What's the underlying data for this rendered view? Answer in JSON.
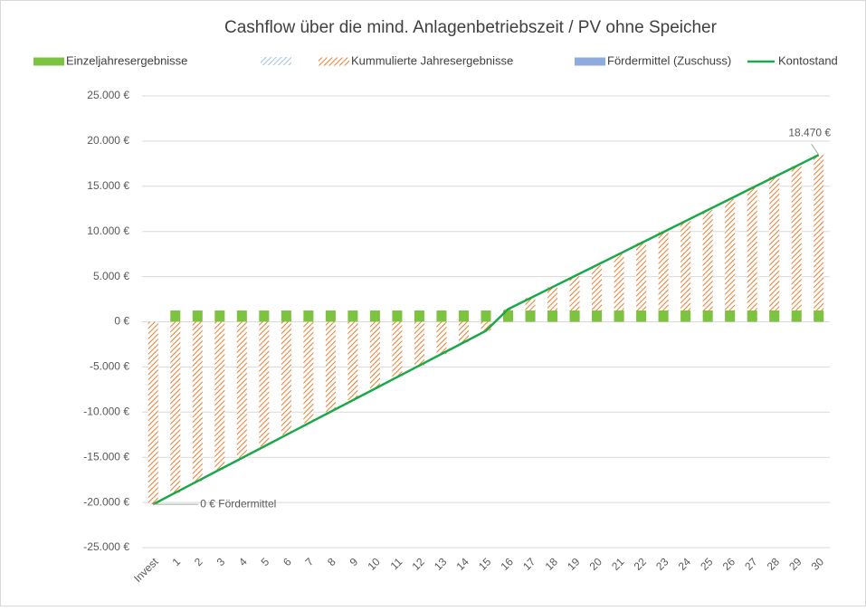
{
  "chart_data": {
    "type": "bar",
    "title": "Cashflow über die mind. Anlagenbetriebszeit / PV ohne Speicher",
    "categories": [
      "Invest",
      "1",
      "2",
      "3",
      "4",
      "5",
      "6",
      "7",
      "8",
      "9",
      "10",
      "11",
      "12",
      "13",
      "14",
      "15",
      "16",
      "17",
      "18",
      "19",
      "20",
      "21",
      "22",
      "23",
      "24",
      "25",
      "26",
      "27",
      "28",
      "29",
      "30"
    ],
    "series": [
      {
        "name": "Einzeljahresergebnisse",
        "color": "#7dc241",
        "kind": "bar",
        "values": [
          null,
          1250,
          1250,
          1250,
          1250,
          1250,
          1250,
          1250,
          1250,
          1250,
          1250,
          1250,
          1250,
          1250,
          1250,
          1250,
          1250,
          1250,
          1250,
          1250,
          1250,
          1250,
          1250,
          1250,
          1250,
          1250,
          1250,
          1250,
          1250,
          1250,
          1250
        ]
      },
      {
        "name": "Kummulierte Jahresergebnisse",
        "color": "#ed7d31",
        "kind": "hatched",
        "values": [
          -20200,
          -18920,
          -17640,
          -16360,
          -15080,
          -13800,
          -12520,
          -11240,
          -9960,
          -8680,
          -7400,
          -6120,
          -4840,
          -3560,
          -2280,
          -1000,
          1400,
          2619,
          3839,
          5058,
          6277,
          7496,
          8716,
          9935,
          11154,
          12374,
          13593,
          14812,
          16031,
          17251,
          18470
        ]
      },
      {
        "name": "Fördermittel (Zuschuss)",
        "color": "#8faadc",
        "kind": "bar",
        "values": [
          0,
          null,
          null,
          null,
          null,
          null,
          null,
          null,
          null,
          null,
          null,
          null,
          null,
          null,
          null,
          null,
          null,
          null,
          null,
          null,
          null,
          null,
          null,
          null,
          null,
          null,
          null,
          null,
          null,
          null,
          null
        ]
      },
      {
        "name": "Kontostand",
        "color": "#1aa84a",
        "kind": "line",
        "values": [
          -20200,
          -18920,
          -17640,
          -16360,
          -15080,
          -13800,
          -12520,
          -11240,
          -9960,
          -8680,
          -7400,
          -6120,
          -4840,
          -3560,
          -2280,
          -1000,
          1400,
          2619,
          3839,
          5058,
          6277,
          7496,
          8716,
          9935,
          11154,
          12374,
          13593,
          14812,
          16031,
          17251,
          18470
        ],
        "value_labels": [
          null,
          null,
          null,
          null,
          null,
          null,
          null,
          null,
          null,
          null,
          null,
          null,
          null,
          null,
          null,
          null,
          null,
          null,
          null,
          null,
          null,
          null,
          null,
          null,
          null,
          null,
          null,
          null,
          null,
          null,
          "18.470 €"
        ]
      }
    ],
    "annotations": [
      "0 € Fördermittel"
    ],
    "ylim": [
      -25000,
      25000
    ],
    "yticks": [
      {
        "value": -25000,
        "label": "-25.000 €"
      },
      {
        "value": -20000,
        "label": "-20.000 €"
      },
      {
        "value": -15000,
        "label": "-15.000 €"
      },
      {
        "value": -10000,
        "label": "-10.000 €"
      },
      {
        "value": -5000,
        "label": "-5.000 €"
      },
      {
        "value": 0,
        "label": "0 €"
      },
      {
        "value": 5000,
        "label": "5.000 €"
      },
      {
        "value": 10000,
        "label": "10.000 €"
      },
      {
        "value": 15000,
        "label": "15.000 €"
      },
      {
        "value": 20000,
        "label": "20.000 €"
      },
      {
        "value": 25000,
        "label": "25.000 €"
      }
    ],
    "grid": true
  }
}
